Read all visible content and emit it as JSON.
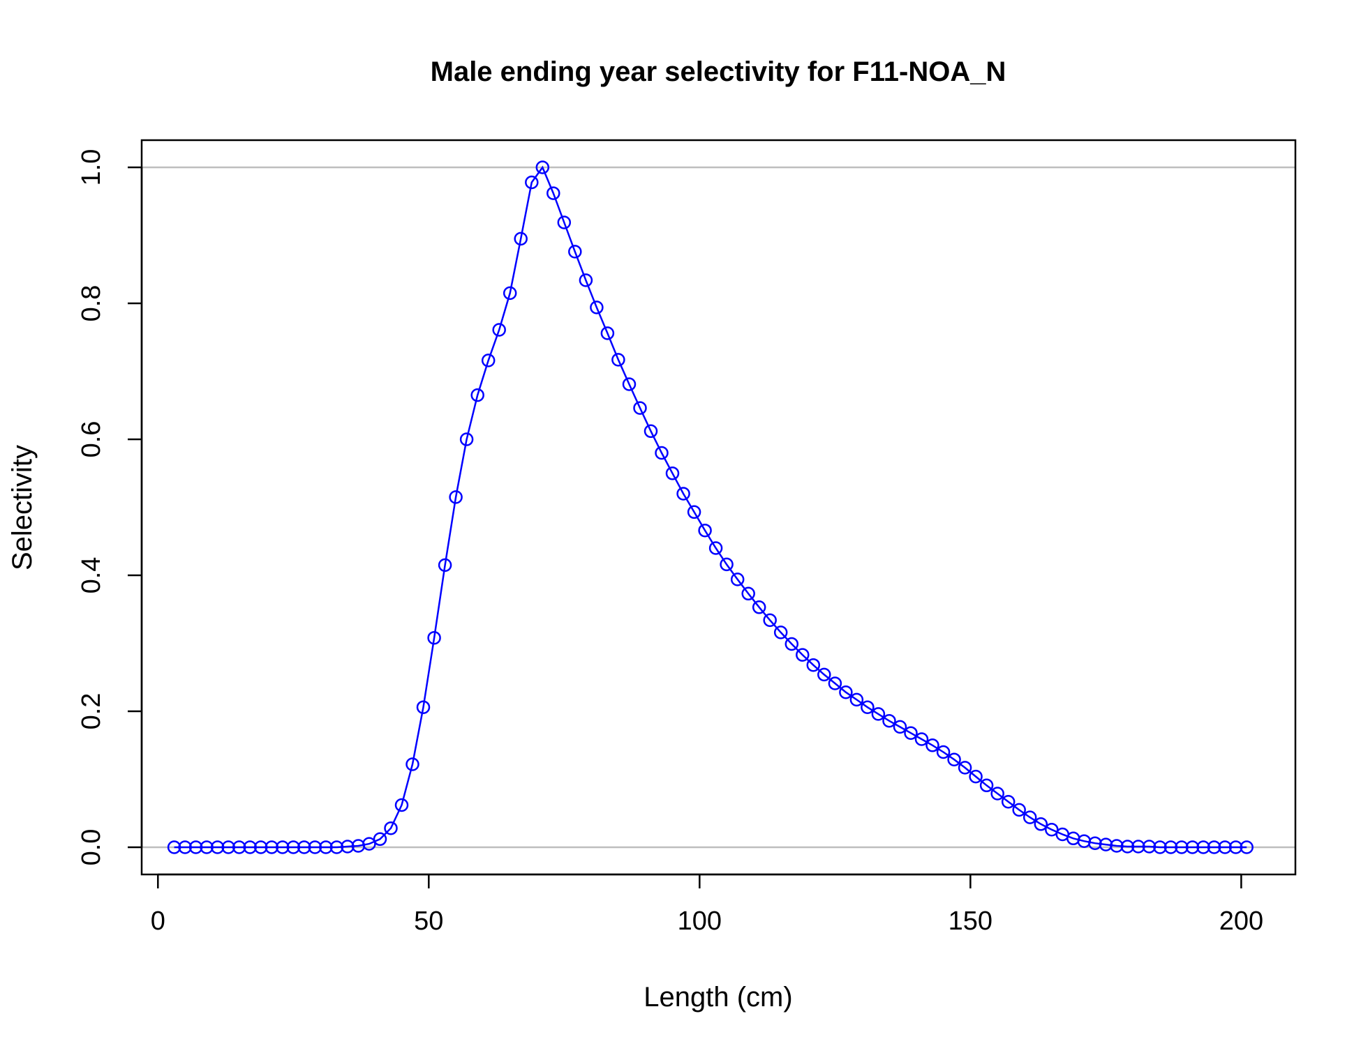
{
  "chart_data": {
    "type": "line",
    "title": "Male ending year selectivity for F11-NOA_N",
    "xlabel": "Length (cm)",
    "ylabel": "Selectivity",
    "xlim": [
      -3,
      210
    ],
    "ylim": [
      -0.04,
      1.04
    ],
    "x_ticks": [
      0,
      50,
      100,
      150,
      200
    ],
    "y_ticks": [
      0.0,
      0.2,
      0.4,
      0.6,
      0.8,
      1.0
    ],
    "x_tick_labels": [
      "0",
      "50",
      "100",
      "150",
      "200"
    ],
    "y_tick_labels": [
      "0.0",
      "0.2",
      "0.4",
      "0.6",
      "0.8",
      "1.0"
    ],
    "reference_lines": [
      0,
      1
    ],
    "markers": "open-circle",
    "grid": false,
    "colors": {
      "series": "#0000ff",
      "reference": "#bebebe",
      "axis": "#000000"
    },
    "series": [
      {
        "x": [
          3,
          5,
          7,
          9,
          11,
          13,
          15,
          17,
          19,
          21,
          23,
          25,
          27,
          29,
          31,
          33,
          35,
          37,
          39,
          41,
          43,
          45,
          47,
          49,
          51,
          53,
          55,
          57,
          59,
          61,
          63,
          65,
          67,
          69,
          71,
          73,
          75,
          77,
          79,
          81,
          83,
          85,
          87,
          89,
          91,
          93,
          95,
          97,
          99,
          101,
          103,
          105,
          107,
          109,
          111,
          113,
          115,
          117,
          119,
          121,
          123,
          125,
          127,
          129,
          131,
          133,
          135,
          137,
          139,
          141,
          143,
          145,
          147,
          149,
          151,
          153,
          155,
          157,
          159,
          161,
          163,
          165,
          167,
          169,
          171,
          173,
          175,
          177,
          179,
          181,
          183,
          185,
          187,
          189,
          191,
          193,
          195,
          197,
          199,
          201
        ],
        "values": [
          0,
          0,
          0,
          0,
          0,
          0,
          0,
          0,
          0,
          0,
          0,
          0,
          0,
          0,
          0,
          0,
          0.001,
          0.002,
          0.005,
          0.012,
          0.028,
          0.062,
          0.122,
          0.206,
          0.308,
          0.415,
          0.515,
          0.6,
          0.665,
          0.716,
          0.761,
          0.815,
          0.895,
          0.978,
          1.0,
          0.962,
          0.919,
          0.876,
          0.834,
          0.794,
          0.756,
          0.717,
          0.681,
          0.646,
          0.612,
          0.58,
          0.55,
          0.52,
          0.493,
          0.466,
          0.44,
          0.416,
          0.394,
          0.373,
          0.353,
          0.334,
          0.316,
          0.299,
          0.283,
          0.268,
          0.254,
          0.241,
          0.228,
          0.217,
          0.206,
          0.196,
          0.186,
          0.177,
          0.168,
          0.159,
          0.15,
          0.14,
          0.129,
          0.117,
          0.104,
          0.091,
          0.079,
          0.067,
          0.055,
          0.044,
          0.034,
          0.026,
          0.019,
          0.013,
          0.009,
          0.006,
          0.004,
          0.002,
          0.001,
          0.001,
          0.001,
          0,
          0,
          0,
          0,
          0,
          0,
          0,
          0,
          0
        ]
      }
    ]
  }
}
